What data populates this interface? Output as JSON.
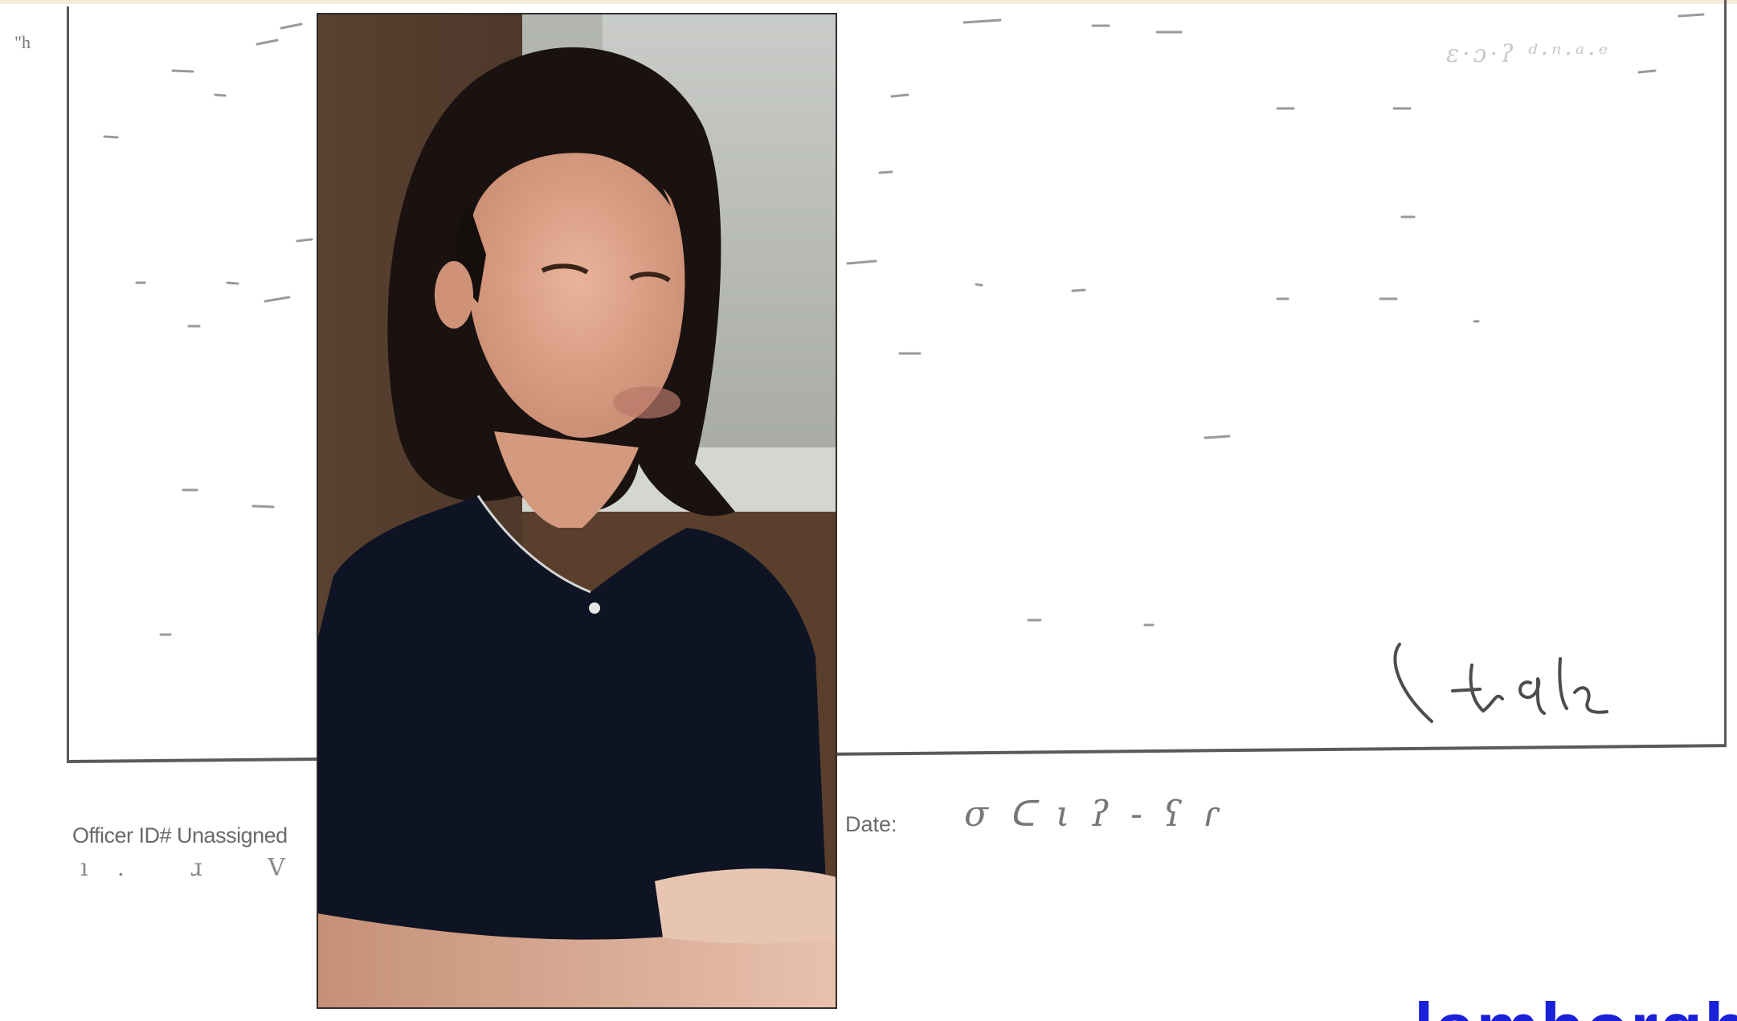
{
  "form": {
    "corner_mark": "\"h",
    "officer_label": "Officer ID# Unassigned",
    "officer_marks": "ı. ɹ V ⟨",
    "date_label": "Date:",
    "date_value": "σ ᑕ  ι ʔ - ʕ ɾ",
    "smudged_text": "ɛ·ɔ·ʔ  ᵈ·ⁿ·ᵃ·ᵉ",
    "signature": "handwritten signature"
  },
  "photo": {
    "subject": "portrait photo of a woman with dark shoulder-length hair wearing a dark navy top"
  },
  "footer": {
    "fragment_text": "lamborghini",
    "fragment_color": "#1a21d8"
  },
  "colors": {
    "paper": "#ffffff",
    "ink": "#5a5a5a",
    "top_band": "#f3ecd9"
  }
}
